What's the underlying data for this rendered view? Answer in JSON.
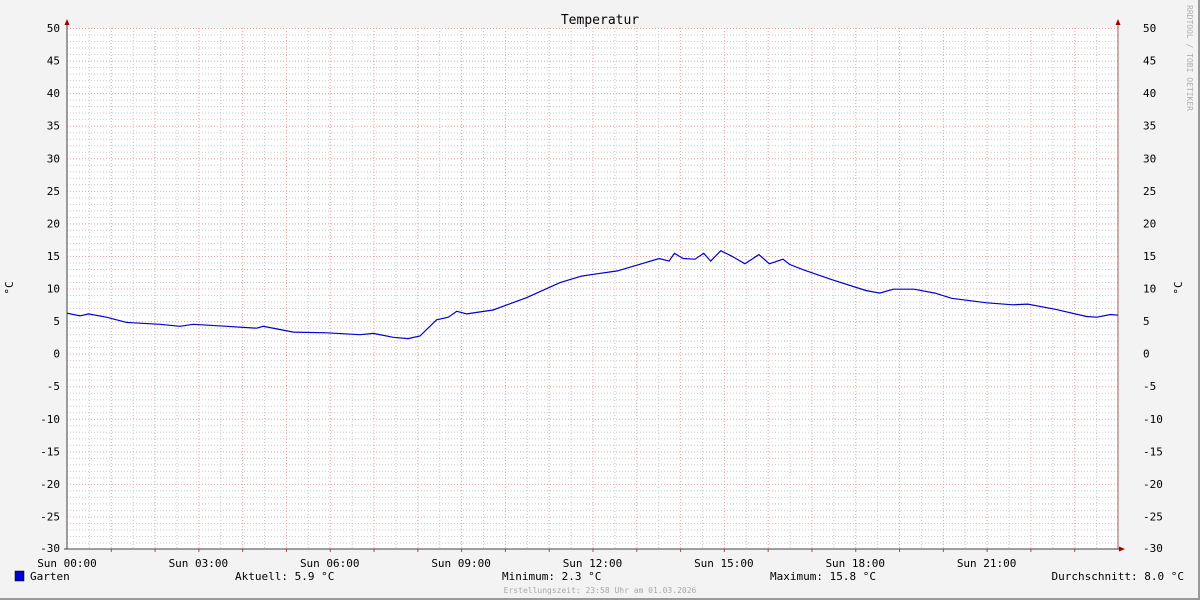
{
  "chart_data": {
    "type": "line",
    "title": "Temperatur",
    "ylabel": "°C",
    "ylabel_right": "°C",
    "ylim": [
      -30,
      50
    ],
    "yticks": [
      50,
      45,
      40,
      35,
      30,
      25,
      20,
      15,
      10,
      5,
      0,
      -5,
      -10,
      -15,
      -20,
      -25,
      -30
    ],
    "xlim_hours": [
      0,
      24
    ],
    "xtick_labels": [
      "Sun 00:00",
      "Sun 03:00",
      "Sun 06:00",
      "Sun 09:00",
      "Sun 12:00",
      "Sun 15:00",
      "Sun 18:00",
      "Sun 21:00"
    ],
    "grid": true,
    "series": [
      {
        "name": "Garten",
        "color": "#0000cc",
        "x_hours": [
          0,
          0.3,
          0.49,
          0.9,
          1.36,
          2.12,
          2.58,
          2.88,
          3.65,
          4.33,
          4.48,
          5.17,
          5.93,
          6.69,
          7.0,
          7.45,
          7.79,
          8.06,
          8.44,
          8.71,
          8.9,
          9.13,
          9.73,
          10.5,
          11.26,
          11.75,
          11.94,
          12.57,
          13.12,
          13.52,
          13.75,
          13.87,
          14.07,
          14.34,
          14.54,
          14.7,
          14.93,
          15.17,
          15.48,
          15.8,
          16.04,
          16.35,
          16.5,
          16.8,
          17.45,
          18.24,
          18.56,
          18.87,
          19.34,
          19.82,
          20.2,
          21.0,
          21.6,
          21.94,
          22.57,
          23.28,
          23.52,
          23.83,
          24
        ],
        "values": [
          6.2,
          5.8,
          6.1,
          5.6,
          4.8,
          4.5,
          4.2,
          4.5,
          4.2,
          3.9,
          4.2,
          3.3,
          3.2,
          2.9,
          3.1,
          2.5,
          2.3,
          2.7,
          5.2,
          5.6,
          6.5,
          6.1,
          6.7,
          8.6,
          10.9,
          11.9,
          12.1,
          12.7,
          13.8,
          14.6,
          14.2,
          15.4,
          14.6,
          14.5,
          15.4,
          14.2,
          15.8,
          15.0,
          13.8,
          15.2,
          13.8,
          14.5,
          13.7,
          12.9,
          11.4,
          9.7,
          9.3,
          9.9,
          9.9,
          9.3,
          8.5,
          7.8,
          7.5,
          7.6,
          6.8,
          5.7,
          5.6,
          6.0,
          5.9
        ]
      }
    ]
  },
  "legend": {
    "series_name": "Garten",
    "series_color": "#0000cc",
    "current": "Aktuell: 5.9 °C",
    "minimum": "Minimum: 2.3 °C",
    "maximum": "Maximum: 15.8 °C",
    "average": "Durchschnitt: 8.0 °C"
  },
  "footer": "Erstellungszeit: 23:58 Uhr am 01.03.2026",
  "watermark": "RRDTOOL / TOBI OETIKER",
  "colors": {
    "major_grid": "#e8a0a0",
    "minor_grid": "#c8c8c8",
    "axis": "#404040",
    "arrow": "#a00000"
  }
}
